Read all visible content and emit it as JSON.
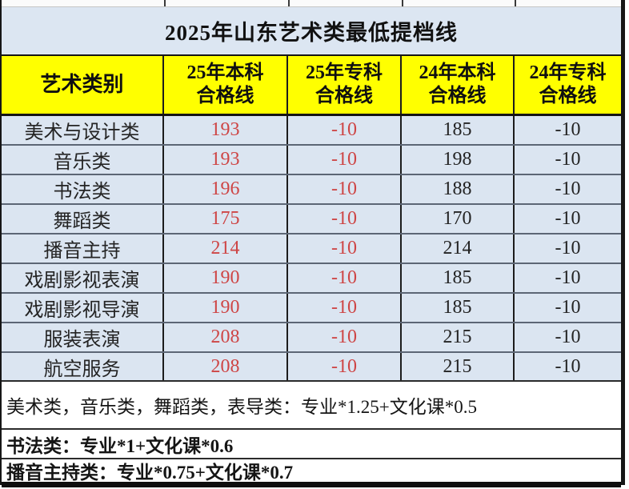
{
  "page": {
    "title": "2025年山东艺术类最低提档线"
  },
  "colors": {
    "header_bg": "#ffff00",
    "row_bg": "#dbe5f1",
    "title_bg": "#dce6f2",
    "red_value": "#ce4545",
    "grid_line": "#1c1c1c",
    "row_divider": "#5c6675"
  },
  "table": {
    "category_header": "艺术类别",
    "columns": [
      {
        "line1": "25年本科",
        "line2": "合格线"
      },
      {
        "line1": "25年专科",
        "line2": "合格线"
      },
      {
        "line1": "24年本科",
        "line2": "合格线"
      },
      {
        "line1": "24年专科",
        "line2": "合格线"
      }
    ],
    "rows": [
      {
        "label": "美术与设计类",
        "values": [
          "193",
          "-10",
          "185",
          "-10"
        ]
      },
      {
        "label": "音乐类",
        "values": [
          "193",
          "-10",
          "198",
          "-10"
        ]
      },
      {
        "label": "书法类",
        "values": [
          "196",
          "-10",
          "188",
          "-10"
        ]
      },
      {
        "label": "舞蹈类",
        "values": [
          "175",
          "-10",
          "170",
          "-10"
        ]
      },
      {
        "label": "播音主持",
        "values": [
          "214",
          "-10",
          "214",
          "-10"
        ]
      },
      {
        "label": "戏剧影视表演",
        "values": [
          "190",
          "-10",
          "185",
          "-10"
        ]
      },
      {
        "label": "戏剧影视导演",
        "values": [
          "190",
          "-10",
          "185",
          "-10"
        ]
      },
      {
        "label": "服装表演",
        "values": [
          "208",
          "-10",
          "215",
          "-10"
        ]
      },
      {
        "label": "航空服务",
        "values": [
          "208",
          "-10",
          "215",
          "-10"
        ]
      }
    ]
  },
  "notes": [
    {
      "text": "美术类，音乐类，舞蹈类，表导类：专业*1.25+文化课*0.5"
    },
    {
      "text": "书法类：专业*1+文化课*0.6"
    },
    {
      "text": "播音主持类：专业*0.75+文化课*0.7"
    }
  ]
}
